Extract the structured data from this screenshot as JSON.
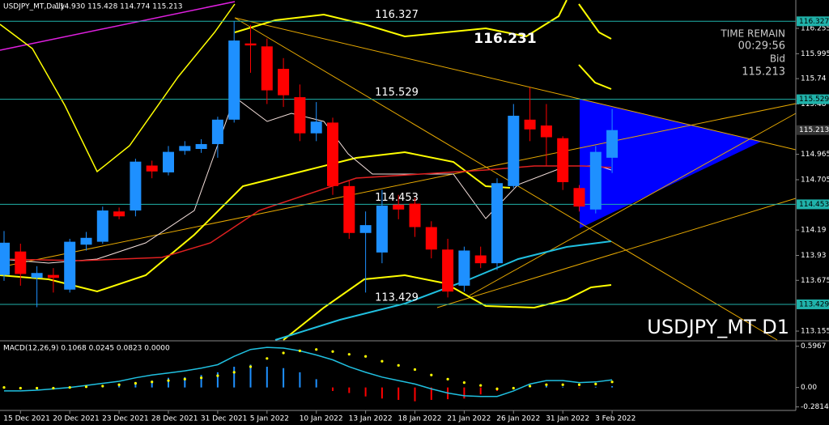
{
  "chart_data": {
    "type": "candlestick",
    "symbol": "USDJPY_MT,Daily",
    "ohlc_text": "114.930 115.428 114.774 115.213",
    "categories": [
      null,
      "15 Dec 2021",
      null,
      null,
      "20 Dec 2021",
      null,
      null,
      "23 Dec 2021",
      null,
      null,
      "28 Dec 2021",
      null,
      null,
      "31 Dec 2021",
      null,
      null,
      "5 Jan 2022",
      null,
      null,
      "10 Jan 2022",
      null,
      null,
      "13 Jan 2022",
      null,
      null,
      "18 Jan 2022",
      null,
      null,
      "21 Jan 2022",
      null,
      null,
      "26 Jan 2022",
      null,
      null,
      "31 Jan 2022",
      null,
      null,
      "3 Feb 2022"
    ],
    "open": [
      113.73,
      113.97,
      113.7,
      113.73,
      113.58,
      114.04,
      114.07,
      114.38,
      114.39,
      114.85,
      114.78,
      115.0,
      115.02,
      115.07,
      115.32,
      116.1,
      116.07,
      115.84,
      115.55,
      115.18,
      115.29,
      114.64,
      114.16,
      113.96,
      114.45,
      114.46,
      114.22,
      113.99,
      113.62,
      113.93,
      113.85,
      114.64,
      115.32,
      115.26,
      115.13,
      114.62,
      114.4,
      114.93
    ],
    "high": [
      114.18,
      114.05,
      113.82,
      113.8,
      114.1,
      114.17,
      114.43,
      114.42,
      114.92,
      114.9,
      115.05,
      115.1,
      115.12,
      115.35,
      116.33,
      116.29,
      116.15,
      115.95,
      115.68,
      115.5,
      115.34,
      114.7,
      114.38,
      114.6,
      114.55,
      114.52,
      114.28,
      114.1,
      114.02,
      114.02,
      114.72,
      115.48,
      115.65,
      115.48,
      115.15,
      114.65,
      115.05,
      115.428
    ],
    "low": [
      113.67,
      113.62,
      113.4,
      113.55,
      113.55,
      113.98,
      114.05,
      114.3,
      114.33,
      114.72,
      114.75,
      114.96,
      114.98,
      114.93,
      115.29,
      115.8,
      115.48,
      115.45,
      115.1,
      115.1,
      114.55,
      114.1,
      113.55,
      113.85,
      114.3,
      114.12,
      113.9,
      113.5,
      113.56,
      113.8,
      113.78,
      114.62,
      115.1,
      114.85,
      114.6,
      114.38,
      114.36,
      114.774
    ],
    "close": [
      114.06,
      113.74,
      113.75,
      113.7,
      114.07,
      114.11,
      114.39,
      114.33,
      114.89,
      114.79,
      114.99,
      115.05,
      115.07,
      115.32,
      116.13,
      116.08,
      115.62,
      115.57,
      115.18,
      115.3,
      114.64,
      114.16,
      114.24,
      114.44,
      114.4,
      114.22,
      113.99,
      113.56,
      113.98,
      113.85,
      114.67,
      115.36,
      115.22,
      115.14,
      114.68,
      114.43,
      114.99,
      115.213
    ],
    "up_color": "#1e90ff",
    "down_color": "#ff0000",
    "ylim": [
      113.064,
      116.545
    ],
    "yticks": [
      116.255,
      115.995,
      115.74,
      115.48,
      114.965,
      114.705,
      114.19,
      113.93,
      113.675,
      113.155
    ],
    "levels": [
      116.327,
      115.529,
      114.453,
      113.429
    ],
    "level_color": "#20b2aa",
    "peak_label": "116.231",
    "time_remain_label": "TIME REMAIN",
    "time_remain": "00:29:56",
    "bid_label": "Bid",
    "bid": 115.213,
    "watermark": "USDJPY_MT D1",
    "macd": {
      "title": "MACD(12,26,9) 0.1068 0.0245 0.0823 0.0000",
      "ylim": [
        -0.309,
        0.652
      ],
      "yticks": [
        0.5967,
        {
          "value": 0,
          "label": "0.00"
        },
        -0.2814
      ],
      "histogram": [
        0,
        0,
        0,
        0,
        0,
        0.01,
        0.03,
        0.05,
        0.08,
        0.1,
        0.14,
        0.15,
        0.18,
        0.22,
        0.3,
        0.33,
        0.3,
        0.28,
        0.22,
        0.12,
        -0.05,
        -0.08,
        -0.13,
        -0.16,
        -0.18,
        -0.2,
        -0.18,
        -0.17,
        -0.16,
        -0.1,
        -0.05,
        -0.01,
        0.01,
        0.02,
        0.01,
        -0.01,
        0.01,
        0.02
      ],
      "line": [
        -0.05,
        -0.05,
        -0.04,
        -0.02,
        0,
        0.03,
        0.06,
        0.09,
        0.14,
        0.18,
        0.21,
        0.24,
        0.28,
        0.33,
        0.45,
        0.55,
        0.58,
        0.57,
        0.53,
        0.47,
        0.4,
        0.3,
        0.22,
        0.15,
        0.1,
        0.05,
        -0.02,
        -0.08,
        -0.12,
        -0.13,
        -0.13,
        -0.05,
        0.05,
        0.1,
        0.1,
        0.07,
        0.08,
        0.11
      ],
      "signal": [
        0,
        -0.01,
        -0.01,
        -0.01,
        0,
        0.01,
        0.02,
        0.04,
        0.06,
        0.08,
        0.1,
        0.12,
        0.14,
        0.17,
        0.22,
        0.3,
        0.42,
        0.5,
        0.53,
        0.55,
        0.52,
        0.48,
        0.45,
        0.38,
        0.32,
        0.26,
        0.18,
        0.12,
        0.07,
        0.03,
        -0.02,
        -0.01,
        0.02,
        0.04,
        0.04,
        0.04,
        0.05,
        0.08
      ]
    }
  }
}
